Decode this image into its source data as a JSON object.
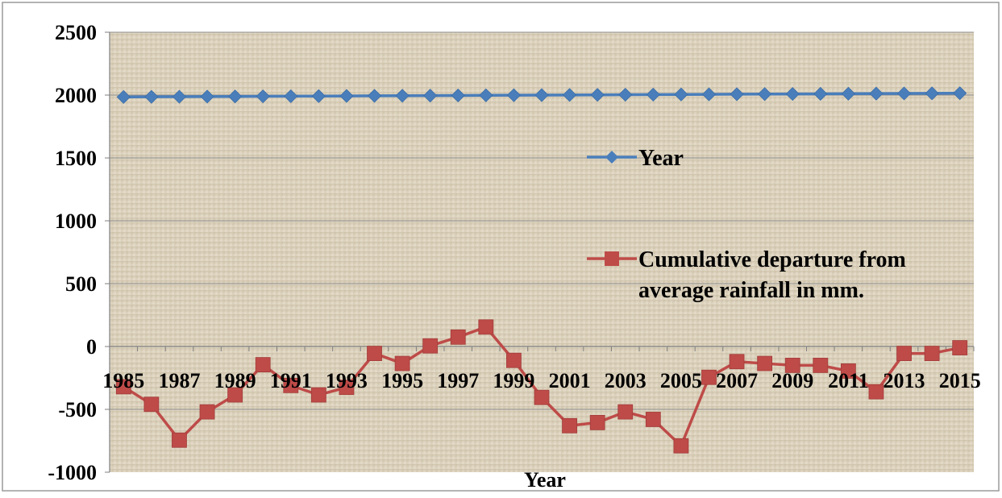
{
  "chart_data": {
    "type": "line",
    "title": "",
    "xlabel": "Year",
    "ylabel": "",
    "ylim": [
      -1000,
      2500
    ],
    "yticks": [
      -1000,
      -500,
      0,
      500,
      1000,
      1500,
      2000,
      2500
    ],
    "x": [
      1985,
      1986,
      1987,
      1988,
      1989,
      1990,
      1991,
      1992,
      1993,
      1994,
      1995,
      1996,
      1997,
      1998,
      1999,
      2000,
      2001,
      2002,
      2003,
      2004,
      2005,
      2006,
      2007,
      2008,
      2009,
      2010,
      2011,
      2012,
      2013,
      2014,
      2015
    ],
    "xtick_labels": [
      "1985",
      "1987",
      "1989",
      "1991",
      "1993",
      "1995",
      "1997",
      "1999",
      "2001",
      "2003",
      "2005",
      "2007",
      "2009",
      "2011",
      "2013",
      "2015"
    ],
    "grid": "horizontal",
    "legend_position": "right",
    "series": [
      {
        "name": "Year",
        "color": "#4a7ebb",
        "marker": "diamond",
        "values": [
          1985,
          1986,
          1987,
          1988,
          1989,
          1990,
          1991,
          1992,
          1993,
          1994,
          1995,
          1996,
          1997,
          1998,
          1999,
          2000,
          2001,
          2002,
          2003,
          2004,
          2005,
          2006,
          2007,
          2008,
          2009,
          2010,
          2011,
          2012,
          2013,
          2014,
          2015
        ]
      },
      {
        "name": "Cumulative departure from average rainfall in mm.",
        "name_lines": [
          "Cumulative departure from",
          "average rainfall in mm."
        ],
        "color": "#be4b48",
        "marker": "square",
        "values": [
          -320,
          -460,
          -745,
          -520,
          -385,
          -145,
          -310,
          -385,
          -325,
          -55,
          -135,
          5,
          75,
          155,
          -110,
          -405,
          -630,
          -605,
          -520,
          -580,
          -790,
          -245,
          -120,
          -135,
          -150,
          -150,
          -195,
          -360,
          -55,
          -55,
          -10
        ]
      }
    ]
  }
}
